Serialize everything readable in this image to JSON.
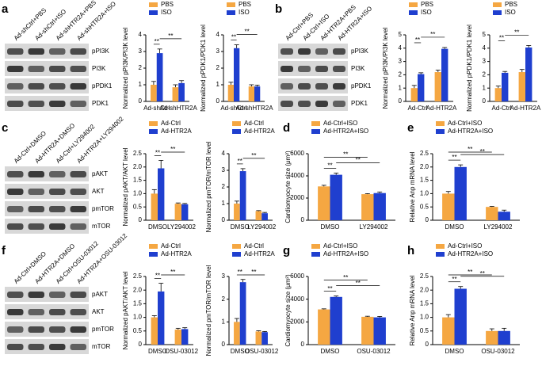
{
  "blots": [
    {
      "label": "a",
      "lanes": [
        "Ad-shCtrl+PBS",
        "Ad-shCtrl+ISO",
        "Ad-shHTR2A+PBS",
        "Ad-shHTR2A+ISO"
      ],
      "proteins": [
        "pPI3K",
        "PI3K",
        "pPDK1",
        "PDK1"
      ]
    },
    {
      "label": "b",
      "lanes": [
        "Ad-Ctrl+PBS",
        "Ad-Ctrl+ISO",
        "Ad-HTR2A+PBS",
        "Ad-HTR2A+ISO"
      ],
      "proteins": [
        "pPI3K",
        "PI3K",
        "pPDK1",
        "PDK1"
      ]
    },
    {
      "label": "c",
      "lanes": [
        "Ad-Ctrl+DMSO",
        "Ad-HTR2A+DMSO",
        "Ad-Ctrl+LY294002",
        "Ad-HTR2A+LY294002"
      ],
      "proteins": [
        "pAKT",
        "AKT",
        "pmTOR",
        "mTOR"
      ]
    },
    {
      "label": "f",
      "lanes": [
        "Ad-Ctrl+DMSO",
        "Ad-HTR2A+DMSO",
        "Ad-Ctrl+OSU-03012",
        "Ad-HTR2A+OSU-03012"
      ],
      "proteins": [
        "pAKT",
        "AKT",
        "pmTOR",
        "mTOR"
      ]
    }
  ],
  "chart_data": [
    {
      "type": "bar",
      "y_label": "Normalized pPI3K/PI3K level",
      "categories": [
        "Ad-shCtrl",
        "Ad-shHTR2A"
      ],
      "series": [
        {
          "name": "PBS",
          "color": "#f5a742",
          "values": [
            1,
            0.85
          ],
          "errors": [
            0.2,
            0.15
          ]
        },
        {
          "name": "ISO",
          "color": "#1f3fcf",
          "values": [
            2.9,
            1.1
          ],
          "errors": [
            0.25,
            0.15
          ]
        }
      ],
      "ylim": [
        0,
        4
      ],
      "yticks": [
        0,
        1,
        2,
        3,
        4
      ],
      "significance": [
        "**",
        "**"
      ]
    },
    {
      "type": "bar",
      "y_label": "Normalized pPDK1/PDK1 level",
      "categories": [
        "Ad-shCtrl",
        "Ad-shHTR2A"
      ],
      "series": [
        {
          "name": "PBS",
          "color": "#f5a742",
          "values": [
            1,
            0.9
          ],
          "errors": [
            0.15,
            0.1
          ]
        },
        {
          "name": "ISO",
          "color": "#1f3fcf",
          "values": [
            3.2,
            0.9
          ],
          "errors": [
            0.2,
            0.08
          ]
        }
      ],
      "ylim": [
        0,
        4
      ],
      "yticks": [
        0,
        1,
        2,
        3,
        4
      ],
      "significance": [
        "**",
        "**"
      ]
    },
    {
      "type": "bar",
      "y_label": "Normalized pPI3K/PI3K level",
      "categories": [
        "Ad-Ctrl",
        "Ad-HTR2A"
      ],
      "series": [
        {
          "name": "PBS",
          "color": "#f5a742",
          "values": [
            1,
            2.2
          ],
          "errors": [
            0.2,
            0.15
          ]
        },
        {
          "name": "ISO",
          "color": "#1f3fcf",
          "values": [
            2.05,
            3.95
          ],
          "errors": [
            0.1,
            0.1
          ]
        }
      ],
      "ylim": [
        0,
        5
      ],
      "yticks": [
        0,
        1,
        2,
        3,
        4,
        5
      ],
      "significance": [
        "**",
        "**"
      ]
    },
    {
      "type": "bar",
      "y_label": "Normalized pPDK1/PDK1 level",
      "categories": [
        "Ad-Ctrl",
        "Ad-HTR2A"
      ],
      "series": [
        {
          "name": "PBS",
          "color": "#f5a742",
          "values": [
            1,
            2.2
          ],
          "errors": [
            0.15,
            0.2
          ]
        },
        {
          "name": "ISO",
          "color": "#1f3fcf",
          "values": [
            2.15,
            4.05
          ],
          "errors": [
            0.1,
            0.15
          ]
        }
      ],
      "ylim": [
        0,
        5
      ],
      "yticks": [
        0,
        1,
        2,
        3,
        4,
        5
      ],
      "significance": [
        "**",
        "**"
      ]
    },
    {
      "type": "bar",
      "y_label": "Normalized pAKT/AKT level",
      "categories": [
        "DMSO",
        "LY294002"
      ],
      "series": [
        {
          "name": "Ad-Ctrl",
          "color": "#f5a742",
          "values": [
            1,
            0.62
          ],
          "errors": [
            0.15,
            0.03
          ]
        },
        {
          "name": "Ad-HTR2A",
          "color": "#1f3fcf",
          "values": [
            1.95,
            0.6
          ],
          "errors": [
            0.3,
            0.03
          ]
        }
      ],
      "ylim": [
        0,
        2.5
      ],
      "yticks": [
        0,
        0.5,
        {
          "value": 1,
          "label": "1.0"
        },
        1.5,
        {
          "value": 2,
          "label": "2.0"
        },
        2.5
      ],
      "significance": [
        "**",
        "**"
      ]
    },
    {
      "type": "bar",
      "y_label": "Normalized pmTOR/mTOR level",
      "categories": [
        "DMSO",
        "LY294002"
      ],
      "series": [
        {
          "name": "Ad-Ctrl",
          "color": "#f5a742",
          "values": [
            1,
            0.55
          ],
          "errors": [
            0.15,
            0.03
          ]
        },
        {
          "name": "Ad-HTR2A",
          "color": "#1f3fcf",
          "values": [
            2.95,
            0.42
          ],
          "errors": [
            0.15,
            0.05
          ]
        }
      ],
      "ylim": [
        0,
        4
      ],
      "yticks": [
        0,
        1,
        2,
        3,
        4
      ],
      "significance": [
        "**",
        "**"
      ]
    },
    {
      "type": "bar",
      "panel": "d",
      "y_label": "Cardiomyocyte size (μm²)",
      "categories": [
        "DMSO",
        "LY294002"
      ],
      "series": [
        {
          "name": "Ad-Ctrl+ISO",
          "color": "#f5a742",
          "values": [
            3050,
            2350
          ],
          "errors": [
            100,
            50
          ]
        },
        {
          "name": "Ad-HTR2A+ISO",
          "color": "#1f3fcf",
          "values": [
            4100,
            2450
          ],
          "errors": [
            150,
            100
          ]
        }
      ],
      "ylim": [
        0,
        6000
      ],
      "yticks": [
        0,
        2000,
        4000,
        6000
      ],
      "significance": [
        "**",
        "**",
        "**"
      ]
    },
    {
      "type": "bar",
      "panel": "e",
      "y_label": "Relative Anp mRNA level",
      "categories": [
        "DMSO",
        "LY294002"
      ],
      "series": [
        {
          "name": "Ad-Ctrl+ISO",
          "color": "#f5a742",
          "values": [
            1,
            0.5
          ],
          "errors": [
            0.08,
            0.02
          ]
        },
        {
          "name": "Ad-HTR2A+ISO",
          "color": "#1f3fcf",
          "values": [
            2,
            0.32
          ],
          "errors": [
            0.08,
            0.06
          ]
        }
      ],
      "ylim": [
        0,
        2.5
      ],
      "yticks": [
        0,
        0.5,
        {
          "value": 1,
          "label": "1.0"
        },
        1.5,
        {
          "value": 2,
          "label": "2.0"
        },
        2.5
      ],
      "significance": [
        "**",
        "**",
        "**"
      ]
    },
    {
      "type": "bar",
      "y_label": "Normalized pAKT/AKT level",
      "categories": [
        "DMSO",
        "OSU-03012"
      ],
      "series": [
        {
          "name": "Ad-Ctrl",
          "color": "#f5a742",
          "values": [
            1,
            0.55
          ],
          "errors": [
            0.06,
            0.05
          ]
        },
        {
          "name": "Ad-HTR2A",
          "color": "#1f3fcf",
          "values": [
            1.95,
            0.57
          ],
          "errors": [
            0.3,
            0.05
          ]
        }
      ],
      "ylim": [
        0,
        2.5
      ],
      "yticks": [
        0,
        0.5,
        {
          "value": 1,
          "label": "1.0"
        },
        1.5,
        {
          "value": 2,
          "label": "2.0"
        },
        2.5
      ],
      "significance": [
        "**",
        "**"
      ]
    },
    {
      "type": "bar",
      "y_label": "Normalized pmTOR/mTOR level",
      "categories": [
        "DMSO",
        "OSU-03012"
      ],
      "series": [
        {
          "name": "Ad-Ctrl",
          "color": "#f5a742",
          "values": [
            1,
            0.58
          ],
          "errors": [
            0.15,
            0.03
          ]
        },
        {
          "name": "Ad-HTR2A",
          "color": "#1f3fcf",
          "values": [
            2.75,
            0.55
          ],
          "errors": [
            0.12,
            0.03
          ]
        }
      ],
      "ylim": [
        0,
        3
      ],
      "yticks": [
        0,
        1,
        2,
        3
      ],
      "significance": [
        "**",
        "**"
      ]
    },
    {
      "type": "bar",
      "panel": "g",
      "y_label": "Cardiomyocyte size (μm²)",
      "categories": [
        "DMSO",
        "OSU-03012"
      ],
      "series": [
        {
          "name": "Ad-Ctrl+ISO",
          "color": "#f5a742",
          "values": [
            3100,
            2450
          ],
          "errors": [
            50,
            50
          ]
        },
        {
          "name": "Ad-HTR2A+ISO",
          "color": "#1f3fcf",
          "values": [
            4200,
            2400
          ],
          "errors": [
            80,
            80
          ]
        }
      ],
      "ylim": [
        0,
        6000
      ],
      "yticks": [
        0,
        2000,
        4000,
        6000
      ],
      "significance": [
        "**",
        "**",
        "**"
      ]
    },
    {
      "type": "bar",
      "panel": "h",
      "y_label": "Relative Anp mRNA level",
      "categories": [
        "DMSO",
        "OSU-03012"
      ],
      "series": [
        {
          "name": "Ad-Ctrl+ISO",
          "color": "#f5a742",
          "values": [
            1,
            0.5
          ],
          "errors": [
            0.1,
            0.08
          ]
        },
        {
          "name": "Ad-HTR2A+ISO",
          "color": "#1f3fcf",
          "values": [
            2.05,
            0.5
          ],
          "errors": [
            0.08,
            0.1
          ]
        }
      ],
      "ylim": [
        0,
        2.5
      ],
      "yticks": [
        0,
        0.5,
        {
          "value": 1,
          "label": "1.0"
        },
        1.5,
        {
          "value": 2,
          "label": "2.0"
        },
        2.5
      ],
      "significance": [
        "**",
        "**",
        "**"
      ]
    }
  ]
}
